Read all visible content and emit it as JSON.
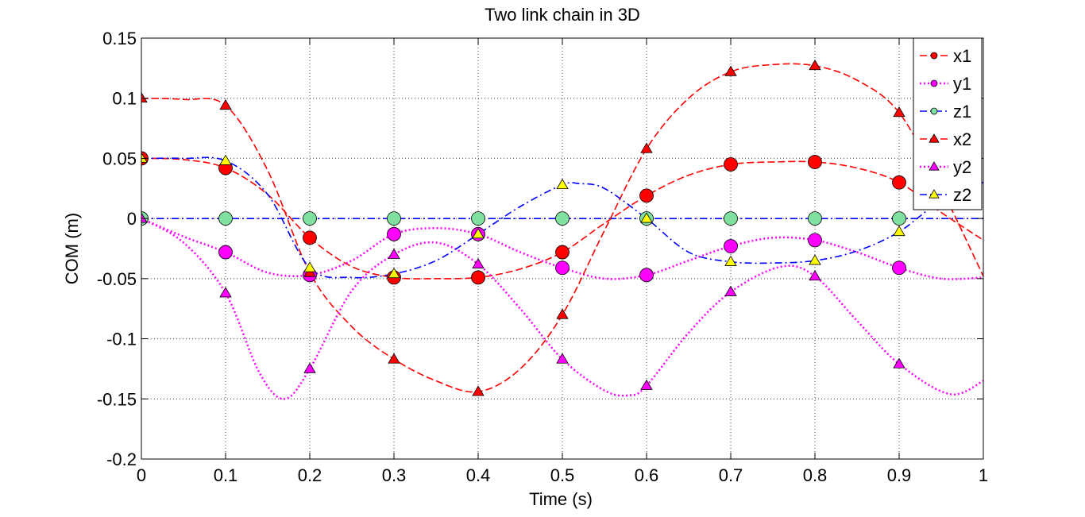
{
  "chart_data": {
    "type": "line",
    "title": "Two link chain in 3D",
    "xlabel": "Time (s)",
    "ylabel": "COM (m)",
    "xlim": [
      0,
      1
    ],
    "ylim": [
      -0.2,
      0.15
    ],
    "xticks": [
      0,
      0.1,
      0.2,
      0.3,
      0.4,
      0.5,
      0.6,
      0.7,
      0.8,
      0.9,
      1
    ],
    "xtick_labels": [
      "0",
      "0.1",
      "0.2",
      "0.3",
      "0.4",
      "0.5",
      "0.6",
      "0.7",
      "0.8",
      "0.9",
      "1"
    ],
    "yticks": [
      -0.2,
      -0.15,
      -0.1,
      -0.05,
      0,
      0.05,
      0.1,
      0.15
    ],
    "ytick_labels": [
      "-0.2",
      "-0.15",
      "-0.1",
      "-0.05",
      "0",
      "0.05",
      "0.1",
      "0.15"
    ],
    "grid": true,
    "legend_position": "top-right",
    "series": [
      {
        "name": "x1",
        "color": "#ff0000",
        "marker_color": "#ff0000",
        "marker": "circle",
        "line": "dashed",
        "marker_x": [
          0,
          0.1,
          0.2,
          0.3,
          0.4,
          0.5,
          0.6,
          0.7,
          0.8,
          0.9
        ],
        "marker_y": [
          0.05,
          0.042,
          -0.016,
          -0.049,
          -0.049,
          -0.028,
          0.019,
          0.045,
          0.047,
          0.03
        ],
        "curve_x": [
          0,
          0.05,
          0.1,
          0.15,
          0.2,
          0.25,
          0.3,
          0.35,
          0.4,
          0.45,
          0.5,
          0.55,
          0.6,
          0.65,
          0.7,
          0.75,
          0.8,
          0.85,
          0.9,
          0.95,
          1.0
        ],
        "curve_y": [
          0.05,
          0.049,
          0.042,
          0.02,
          -0.016,
          -0.04,
          -0.049,
          -0.05,
          -0.049,
          -0.042,
          -0.028,
          -0.004,
          0.019,
          0.036,
          0.045,
          0.047,
          0.047,
          0.042,
          0.03,
          0.005,
          -0.018
        ]
      },
      {
        "name": "y1",
        "color": "#ff00ff",
        "marker_color": "#ff00ff",
        "marker": "circle",
        "line": "dotted",
        "marker_x": [
          0,
          0.1,
          0.2,
          0.3,
          0.4,
          0.5,
          0.6,
          0.7,
          0.8,
          0.9
        ],
        "marker_y": [
          0.0,
          -0.028,
          -0.047,
          -0.013,
          -0.013,
          -0.041,
          -0.047,
          -0.023,
          -0.018,
          -0.041
        ],
        "curve_x": [
          0,
          0.05,
          0.1,
          0.15,
          0.2,
          0.25,
          0.3,
          0.35,
          0.4,
          0.45,
          0.5,
          0.55,
          0.6,
          0.65,
          0.7,
          0.75,
          0.8,
          0.85,
          0.9,
          0.95,
          1.0
        ],
        "curve_y": [
          0.0,
          -0.015,
          -0.028,
          -0.045,
          -0.047,
          -0.035,
          -0.013,
          -0.008,
          -0.013,
          -0.028,
          -0.041,
          -0.05,
          -0.047,
          -0.035,
          -0.023,
          -0.016,
          -0.018,
          -0.028,
          -0.041,
          -0.05,
          -0.049
        ]
      },
      {
        "name": "z1",
        "color": "#0000ff",
        "marker_color": "#7fe0a0",
        "marker": "circle",
        "line": "dashdot",
        "marker_x": [
          0,
          0.1,
          0.2,
          0.3,
          0.4,
          0.5,
          0.6,
          0.7,
          0.8,
          0.9
        ],
        "marker_y": [
          0,
          0,
          0,
          0,
          0,
          0,
          0,
          0,
          0,
          0
        ],
        "curve_x": [
          0,
          1.0
        ],
        "curve_y": [
          0,
          0
        ]
      },
      {
        "name": "x2",
        "color": "#ff0000",
        "marker_color": "#ff0000",
        "marker": "triangle",
        "line": "dashed",
        "marker_x": [
          0,
          0.1,
          0.2,
          0.3,
          0.4,
          0.5,
          0.6,
          0.7,
          0.8,
          0.9
        ],
        "marker_y": [
          0.1,
          0.094,
          -0.045,
          -0.117,
          -0.144,
          -0.08,
          0.058,
          0.122,
          0.127,
          0.088
        ],
        "curve_x": [
          0,
          0.05,
          0.1,
          0.15,
          0.2,
          0.25,
          0.3,
          0.35,
          0.4,
          0.45,
          0.5,
          0.55,
          0.6,
          0.65,
          0.7,
          0.75,
          0.8,
          0.85,
          0.9,
          0.95,
          1.0
        ],
        "curve_y": [
          0.1,
          0.099,
          0.094,
          0.04,
          -0.045,
          -0.09,
          -0.117,
          -0.135,
          -0.144,
          -0.125,
          -0.08,
          -0.01,
          0.058,
          0.1,
          0.122,
          0.128,
          0.127,
          0.115,
          0.088,
          0.025,
          -0.048
        ]
      },
      {
        "name": "y2",
        "color": "#ff00ff",
        "marker_color": "#ff00ff",
        "marker": "triangle",
        "line": "dotted",
        "marker_x": [
          0,
          0.1,
          0.2,
          0.3,
          0.4,
          0.5,
          0.6,
          0.7,
          0.8,
          0.9
        ],
        "marker_y": [
          0.0,
          -0.062,
          -0.125,
          -0.03,
          -0.038,
          -0.117,
          -0.139,
          -0.061,
          -0.048,
          -0.121
        ],
        "curve_x": [
          0,
          0.05,
          0.1,
          0.14,
          0.17,
          0.2,
          0.25,
          0.3,
          0.35,
          0.4,
          0.45,
          0.5,
          0.55,
          0.58,
          0.6,
          0.65,
          0.7,
          0.76,
          0.8,
          0.85,
          0.9,
          0.96,
          1.0
        ],
        "curve_y": [
          0.0,
          -0.02,
          -0.062,
          -0.128,
          -0.15,
          -0.125,
          -0.06,
          -0.03,
          -0.02,
          -0.038,
          -0.075,
          -0.117,
          -0.143,
          -0.147,
          -0.139,
          -0.095,
          -0.061,
          -0.04,
          -0.048,
          -0.085,
          -0.121,
          -0.146,
          -0.135
        ]
      },
      {
        "name": "z2",
        "color": "#0000ff",
        "marker_color": "#ffff00",
        "marker": "triangle",
        "line": "dashdot",
        "marker_x": [
          0,
          0.1,
          0.2,
          0.3,
          0.4,
          0.5,
          0.6,
          0.7,
          0.8,
          0.9
        ],
        "marker_y": [
          0.05,
          0.048,
          -0.041,
          -0.046,
          -0.013,
          0.028,
          0.0,
          -0.036,
          -0.035,
          -0.011
        ],
        "curve_x": [
          0,
          0.05,
          0.1,
          0.15,
          0.2,
          0.25,
          0.3,
          0.35,
          0.4,
          0.45,
          0.5,
          0.52,
          0.55,
          0.6,
          0.65,
          0.7,
          0.75,
          0.8,
          0.85,
          0.9,
          0.95,
          1.0
        ],
        "curve_y": [
          0.05,
          0.05,
          0.048,
          0.02,
          -0.041,
          -0.049,
          -0.046,
          -0.035,
          -0.013,
          0.01,
          0.028,
          0.029,
          0.025,
          0.0,
          -0.028,
          -0.036,
          -0.037,
          -0.035,
          -0.027,
          -0.011,
          0.015,
          0.03
        ]
      }
    ]
  }
}
